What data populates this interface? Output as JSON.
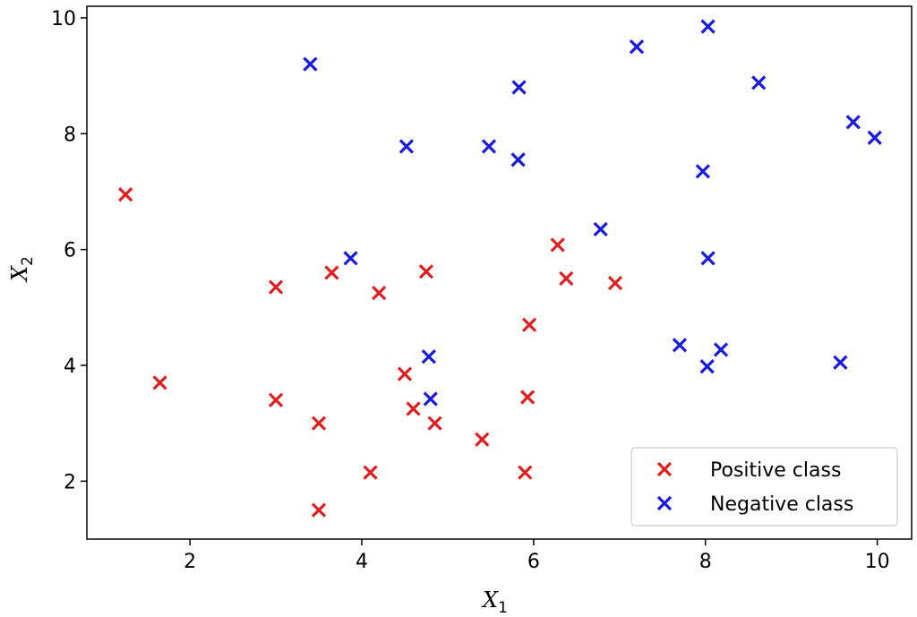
{
  "chart_data": {
    "type": "scatter",
    "title": "",
    "xlabel": "X",
    "xlabel_sub": "1",
    "ylabel": "X",
    "ylabel_sub": "2",
    "xlim": [
      0.8,
      10.4
    ],
    "ylim": [
      1.0,
      10.2
    ],
    "xticks": [
      2,
      4,
      6,
      8,
      10
    ],
    "yticks": [
      2,
      4,
      6,
      8,
      10
    ],
    "grid": false,
    "legend_position": "bottom-right",
    "marker": "x",
    "series": [
      {
        "name": "Positive class",
        "color": "#e02020",
        "points": [
          [
            1.25,
            6.95
          ],
          [
            1.65,
            3.7
          ],
          [
            3.0,
            5.35
          ],
          [
            3.0,
            3.4
          ],
          [
            3.5,
            3.0
          ],
          [
            3.5,
            1.5
          ],
          [
            3.65,
            5.6
          ],
          [
            4.1,
            2.15
          ],
          [
            4.2,
            5.25
          ],
          [
            4.5,
            3.85
          ],
          [
            4.6,
            3.25
          ],
          [
            4.75,
            5.62
          ],
          [
            4.85,
            3.0
          ],
          [
            5.4,
            2.72
          ],
          [
            5.9,
            2.15
          ],
          [
            5.93,
            3.45
          ],
          [
            5.95,
            4.7
          ],
          [
            6.28,
            6.08
          ],
          [
            6.38,
            5.5
          ],
          [
            6.95,
            5.42
          ]
        ]
      },
      {
        "name": "Negative class",
        "color": "#1a1adb",
        "points": [
          [
            3.4,
            9.2
          ],
          [
            3.87,
            5.85
          ],
          [
            4.52,
            7.78
          ],
          [
            4.78,
            4.15
          ],
          [
            4.8,
            3.42
          ],
          [
            5.48,
            7.78
          ],
          [
            5.82,
            7.55
          ],
          [
            5.83,
            8.8
          ],
          [
            6.78,
            6.35
          ],
          [
            7.2,
            9.5
          ],
          [
            7.7,
            4.35
          ],
          [
            7.97,
            7.35
          ],
          [
            8.02,
            3.98
          ],
          [
            8.03,
            5.85
          ],
          [
            8.03,
            9.85
          ],
          [
            8.18,
            4.27
          ],
          [
            8.62,
            8.88
          ],
          [
            9.57,
            4.05
          ],
          [
            9.72,
            8.2
          ],
          [
            9.97,
            7.93
          ]
        ]
      }
    ]
  }
}
